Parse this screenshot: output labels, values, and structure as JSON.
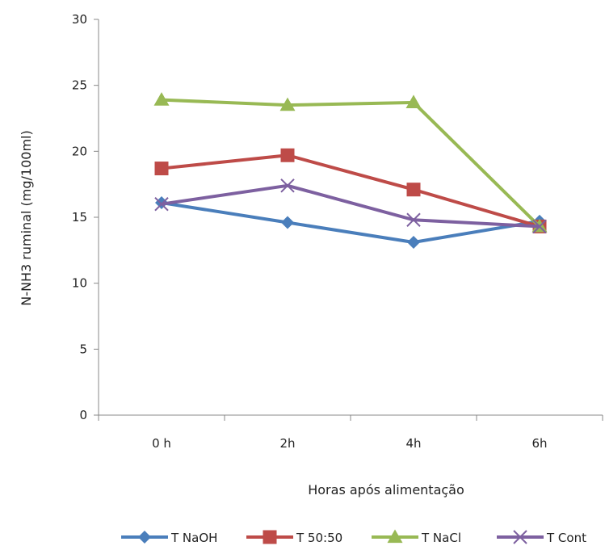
{
  "chart_data": {
    "type": "line",
    "title": "",
    "xlabel": "Horas após alimentação",
    "ylabel": "N-NH3 ruminal (mg/100ml)",
    "categories": [
      "0 h",
      "2h",
      "4h",
      "6h"
    ],
    "ylim": [
      0,
      30
    ],
    "yticks": [
      0,
      5,
      10,
      15,
      20,
      25,
      30
    ],
    "grid": false,
    "legend_position": "bottom",
    "series": [
      {
        "name": "T NaOH",
        "values": [
          16.1,
          14.6,
          13.1,
          14.7
        ],
        "color": "#4a7ebb",
        "marker": "diamond"
      },
      {
        "name": "T 50:50",
        "values": [
          18.7,
          19.7,
          17.1,
          14.3
        ],
        "color": "#be4b48",
        "marker": "square"
      },
      {
        "name": "T NaCl",
        "values": [
          23.9,
          23.5,
          23.7,
          14.3
        ],
        "color": "#98b954",
        "marker": "triangle"
      },
      {
        "name": "T Cont",
        "values": [
          16.0,
          17.4,
          14.8,
          14.3
        ],
        "color": "#7d60a0",
        "marker": "x"
      }
    ]
  }
}
